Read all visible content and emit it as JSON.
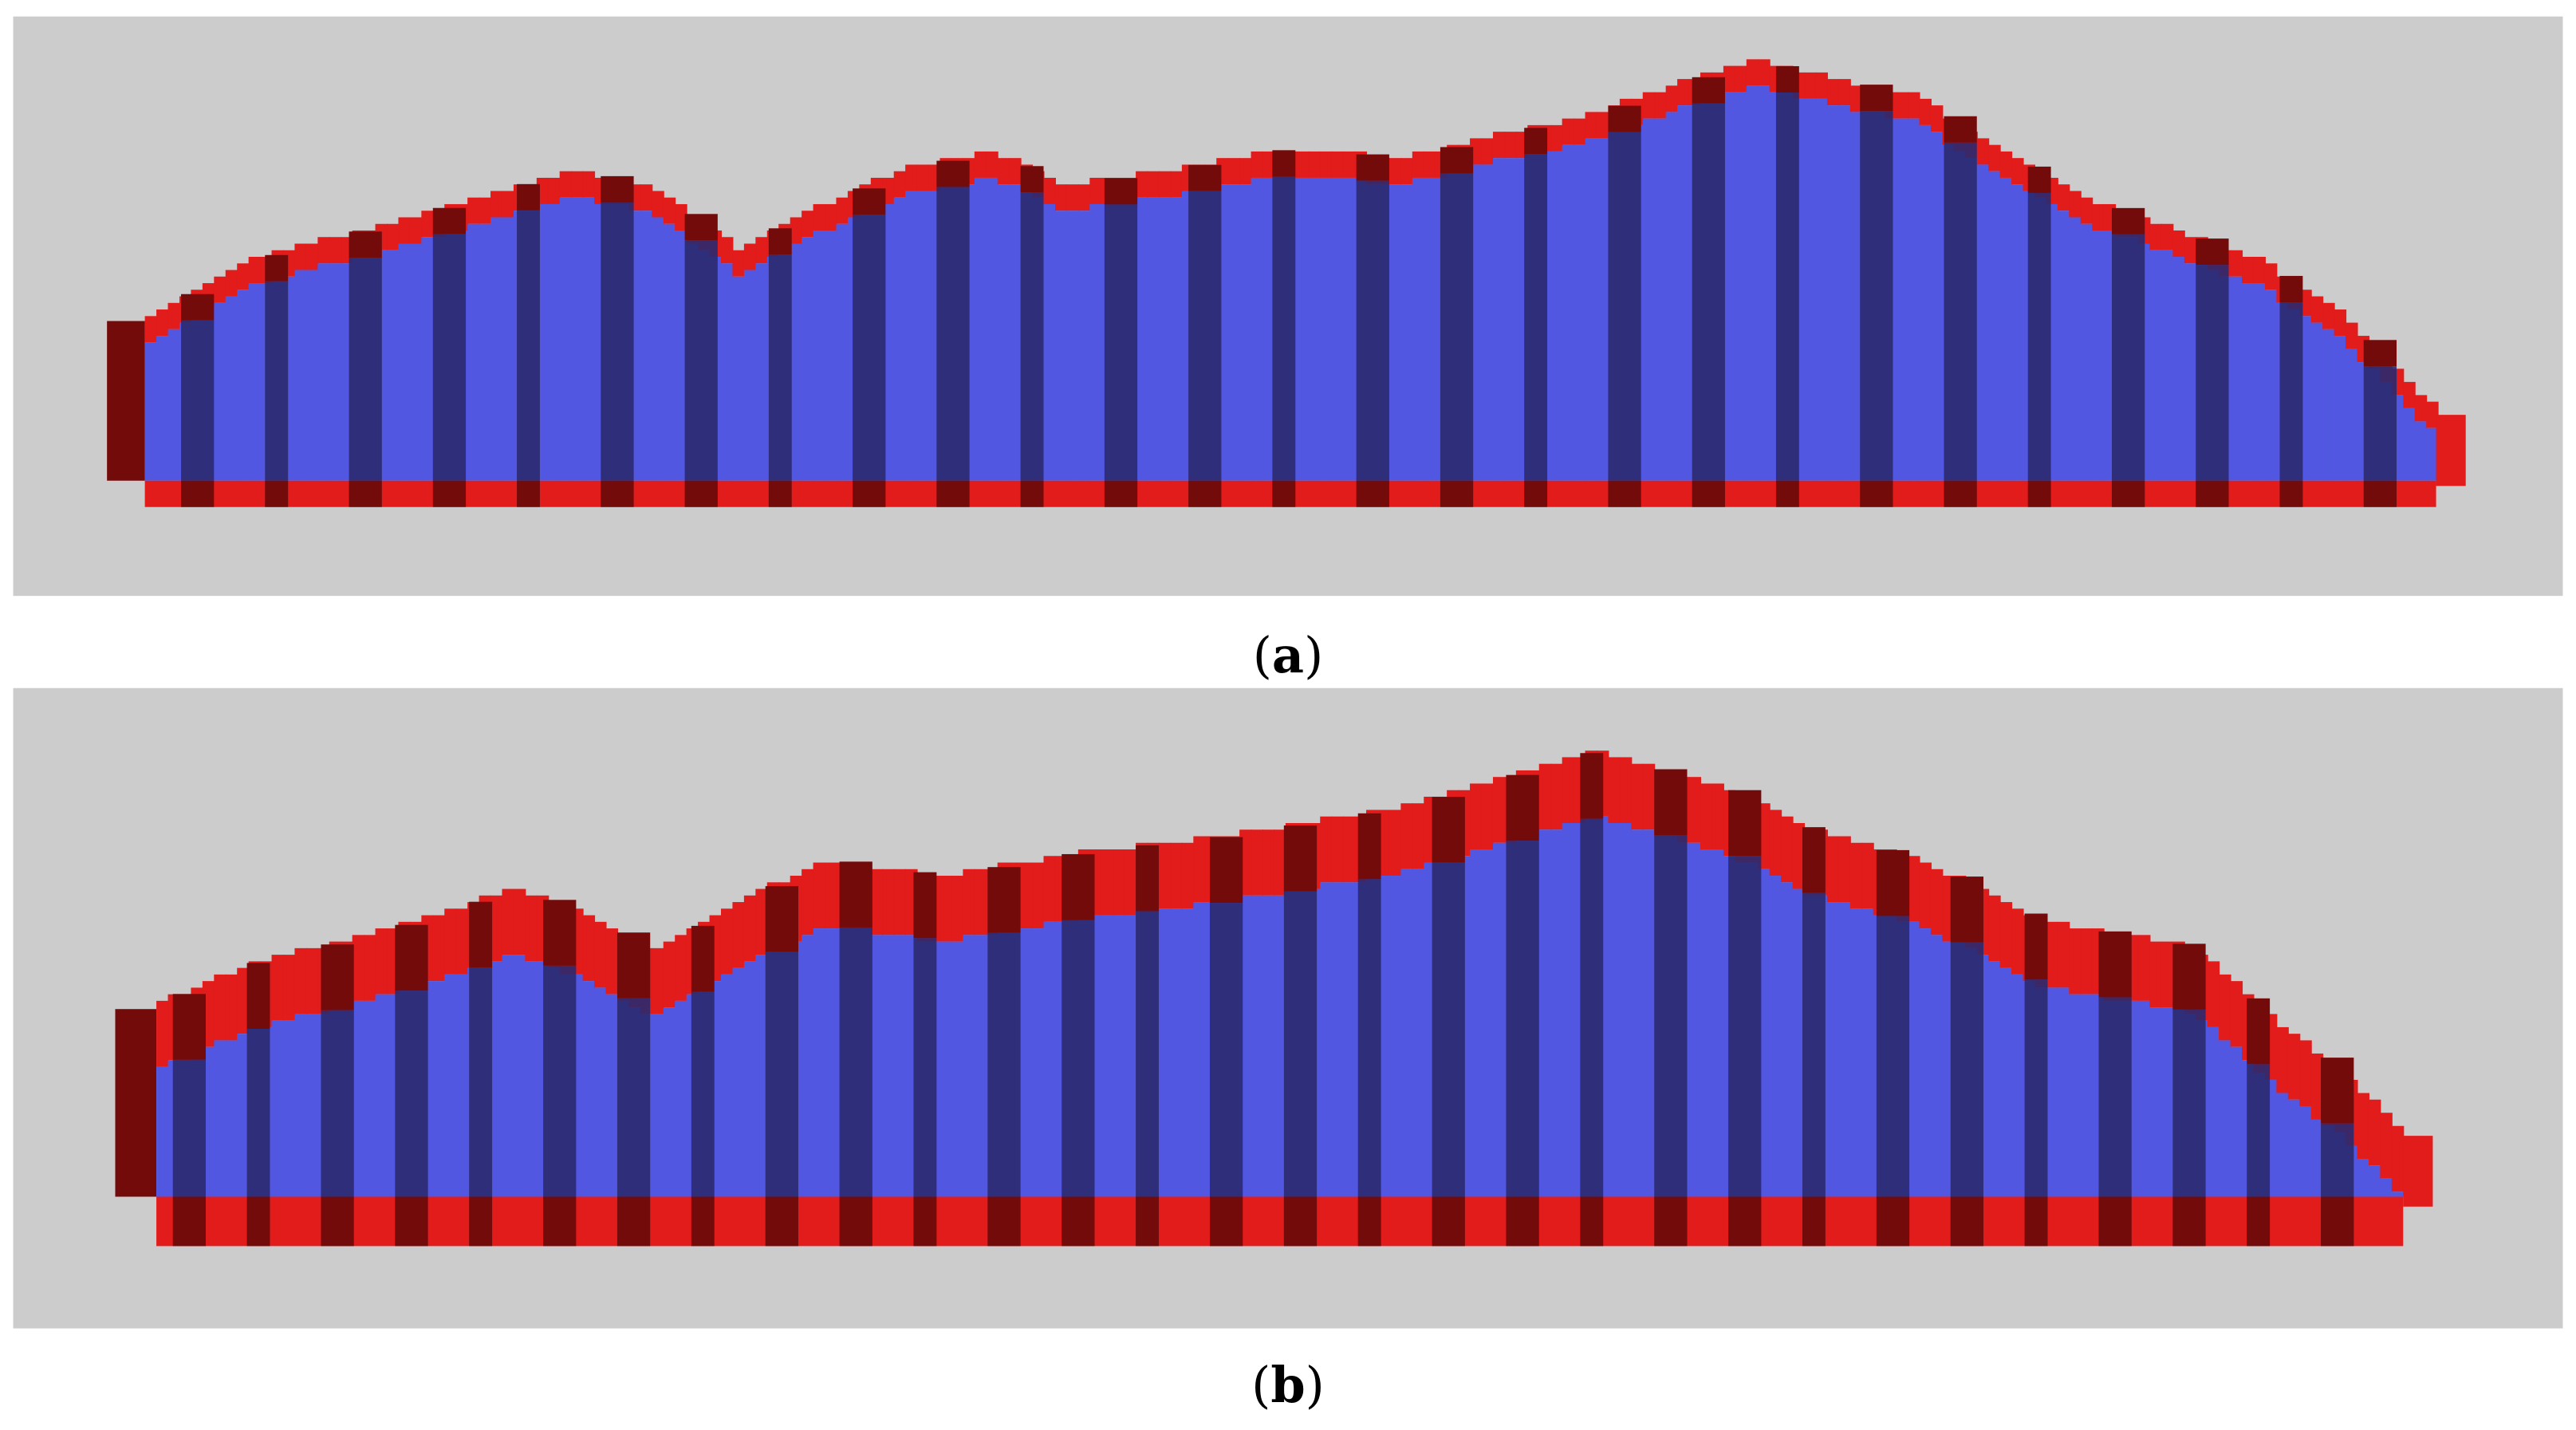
{
  "panels": [
    {
      "label": "a",
      "caption_open": "(",
      "caption_close": ")"
    },
    {
      "label": "b",
      "caption_open": "(",
      "caption_close": ")"
    }
  ],
  "colors": {
    "background": "#cccccc",
    "surface_red": "#e21b1b",
    "surface_red_dark": "#730b0b",
    "body_blue": "#5257e2",
    "body_blue_dark": "#2a2a70"
  }
}
